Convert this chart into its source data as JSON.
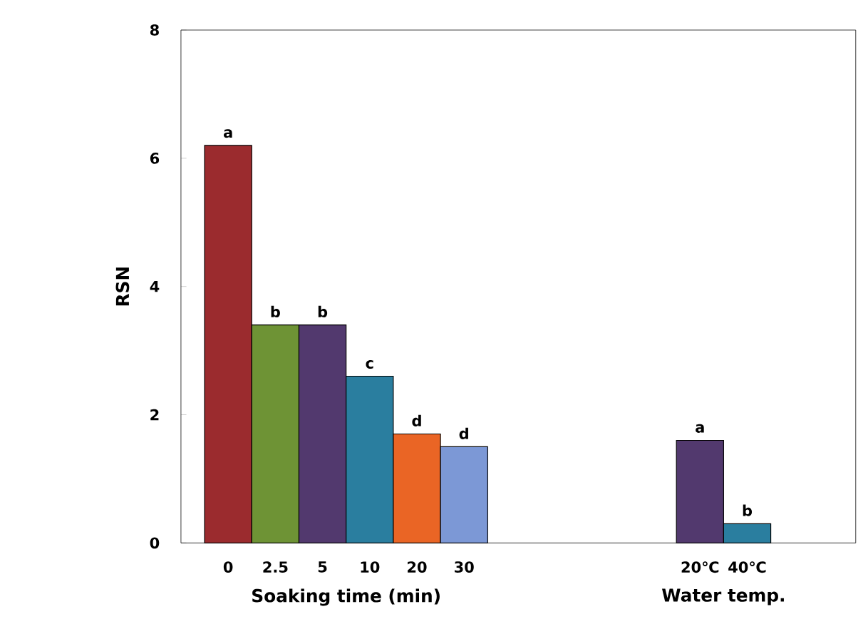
{
  "chart_data": {
    "type": "bar",
    "ylabel": "RSN",
    "categories": [
      "0",
      "2.5",
      "5",
      "10",
      "20",
      "30",
      null,
      null,
      null,
      null,
      "20℃",
      "40℃"
    ],
    "values": [
      6.2,
      3.4,
      3.4,
      2.6,
      1.7,
      1.5,
      null,
      null,
      null,
      null,
      1.6,
      0.3
    ],
    "colors": [
      "#9b2b2e",
      "#6e9335",
      "#52396e",
      "#2a7e9f",
      "#ea6525",
      "#7c98d6",
      null,
      null,
      null,
      null,
      "#52396e",
      "#2a7e9f"
    ],
    "value_labels": [
      "a",
      "b",
      "b",
      "c",
      "d",
      "d",
      null,
      null,
      null,
      null,
      "a",
      "b"
    ],
    "annotations": [
      "Soaking time (min)",
      "Water temp."
    ],
    "ylim": [
      0,
      8
    ],
    "yticks": [
      0,
      2,
      4,
      6,
      8
    ]
  }
}
